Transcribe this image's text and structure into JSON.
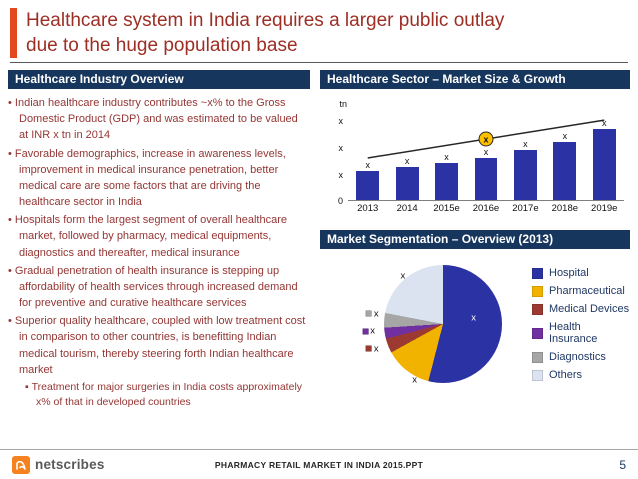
{
  "slide": {
    "title_lines": [
      "Healthcare system in India requires a larger public outlay",
      "due to the huge population base"
    ],
    "page_number": "5",
    "footer_text": "PHARMACY RETAIL MARKET IN INDIA 2015.PPT",
    "logo_text": "netscribes",
    "accent_color": "#e2491f",
    "title_color": "#9c2e24",
    "header_bg": "#17365d"
  },
  "left_panel": {
    "header": "Healthcare Industry Overview",
    "bullets": [
      "Indian healthcare industry contributes ~x% to the Gross Domestic Product (GDP) and was estimated to be valued at INR x tn in 2014",
      "Favorable demographics, increase in awareness levels, improvement in medical insurance penetration, better medical care are some factors that are driving the healthcare sector in India",
      "Hospitals form the largest segment of overall healthcare market, followed by pharmacy, medical equipments, diagnostics and thereafter, medical insurance",
      "Gradual penetration of health insurance is stepping up affordability of health services through increased demand for preventive and curative healthcare services",
      "Superior quality healthcare, coupled with low treatment cost in comparison to other countries, is benefitting Indian medical tourism, thereby steering forth Indian healthcare market"
    ],
    "sub_bullets": [
      "Treatment for major surgeries in India costs approximately x% of that in developed countries"
    ]
  },
  "right_panel": {
    "market_chart_header": "Healthcare Sector – Market Size & Growth",
    "segmentation_header": "Market Segmentation – Overview  (2013)"
  },
  "chart_data": [
    {
      "type": "bar",
      "title": "Healthcare Sector – Market Size & Growth",
      "categories": [
        "2013",
        "2014",
        "2015e",
        "2016e",
        "2017e",
        "2018e",
        "2019e"
      ],
      "values": [
        1.1,
        1.25,
        1.4,
        1.6,
        1.9,
        2.2,
        2.7
      ],
      "bar_labels": [
        "x",
        "x",
        "x",
        "x",
        "x",
        "x",
        "x"
      ],
      "y_axis_unit": "tn",
      "y_ticks": [
        {
          "label": "0",
          "value": 0
        },
        {
          "label": "x",
          "value": 1
        },
        {
          "label": "x",
          "value": 2
        },
        {
          "label": "x",
          "value": 3
        }
      ],
      "ylim": [
        0,
        3.3
      ],
      "bar_color": "#2b32a3",
      "trend_line": {
        "marker_label": "x",
        "marker_color": "#ffc000",
        "line_color": "#262626"
      },
      "grid": false,
      "legend_position": "none"
    },
    {
      "type": "pie",
      "title": "Market Segmentation – Overview (2013)",
      "slices": [
        {
          "label": "Hospital",
          "value": 54,
          "color": "#2b32a3",
          "data_label": "x"
        },
        {
          "label": "Pharmaceutical",
          "value": 13,
          "color": "#f2b200",
          "data_label": "x"
        },
        {
          "label": "Medical Devices",
          "value": 4,
          "color": "#9c3a32",
          "data_label": "x"
        },
        {
          "label": "Health Insurance",
          "value": 3,
          "color": "#7030a0",
          "data_label": "x"
        },
        {
          "label": "Diagnostics",
          "value": 4,
          "color": "#a6a6a6",
          "data_label": "x"
        },
        {
          "label": "Others",
          "value": 22,
          "color": "#dbe3f1",
          "data_label": "x"
        }
      ],
      "legend_position": "right"
    }
  ]
}
